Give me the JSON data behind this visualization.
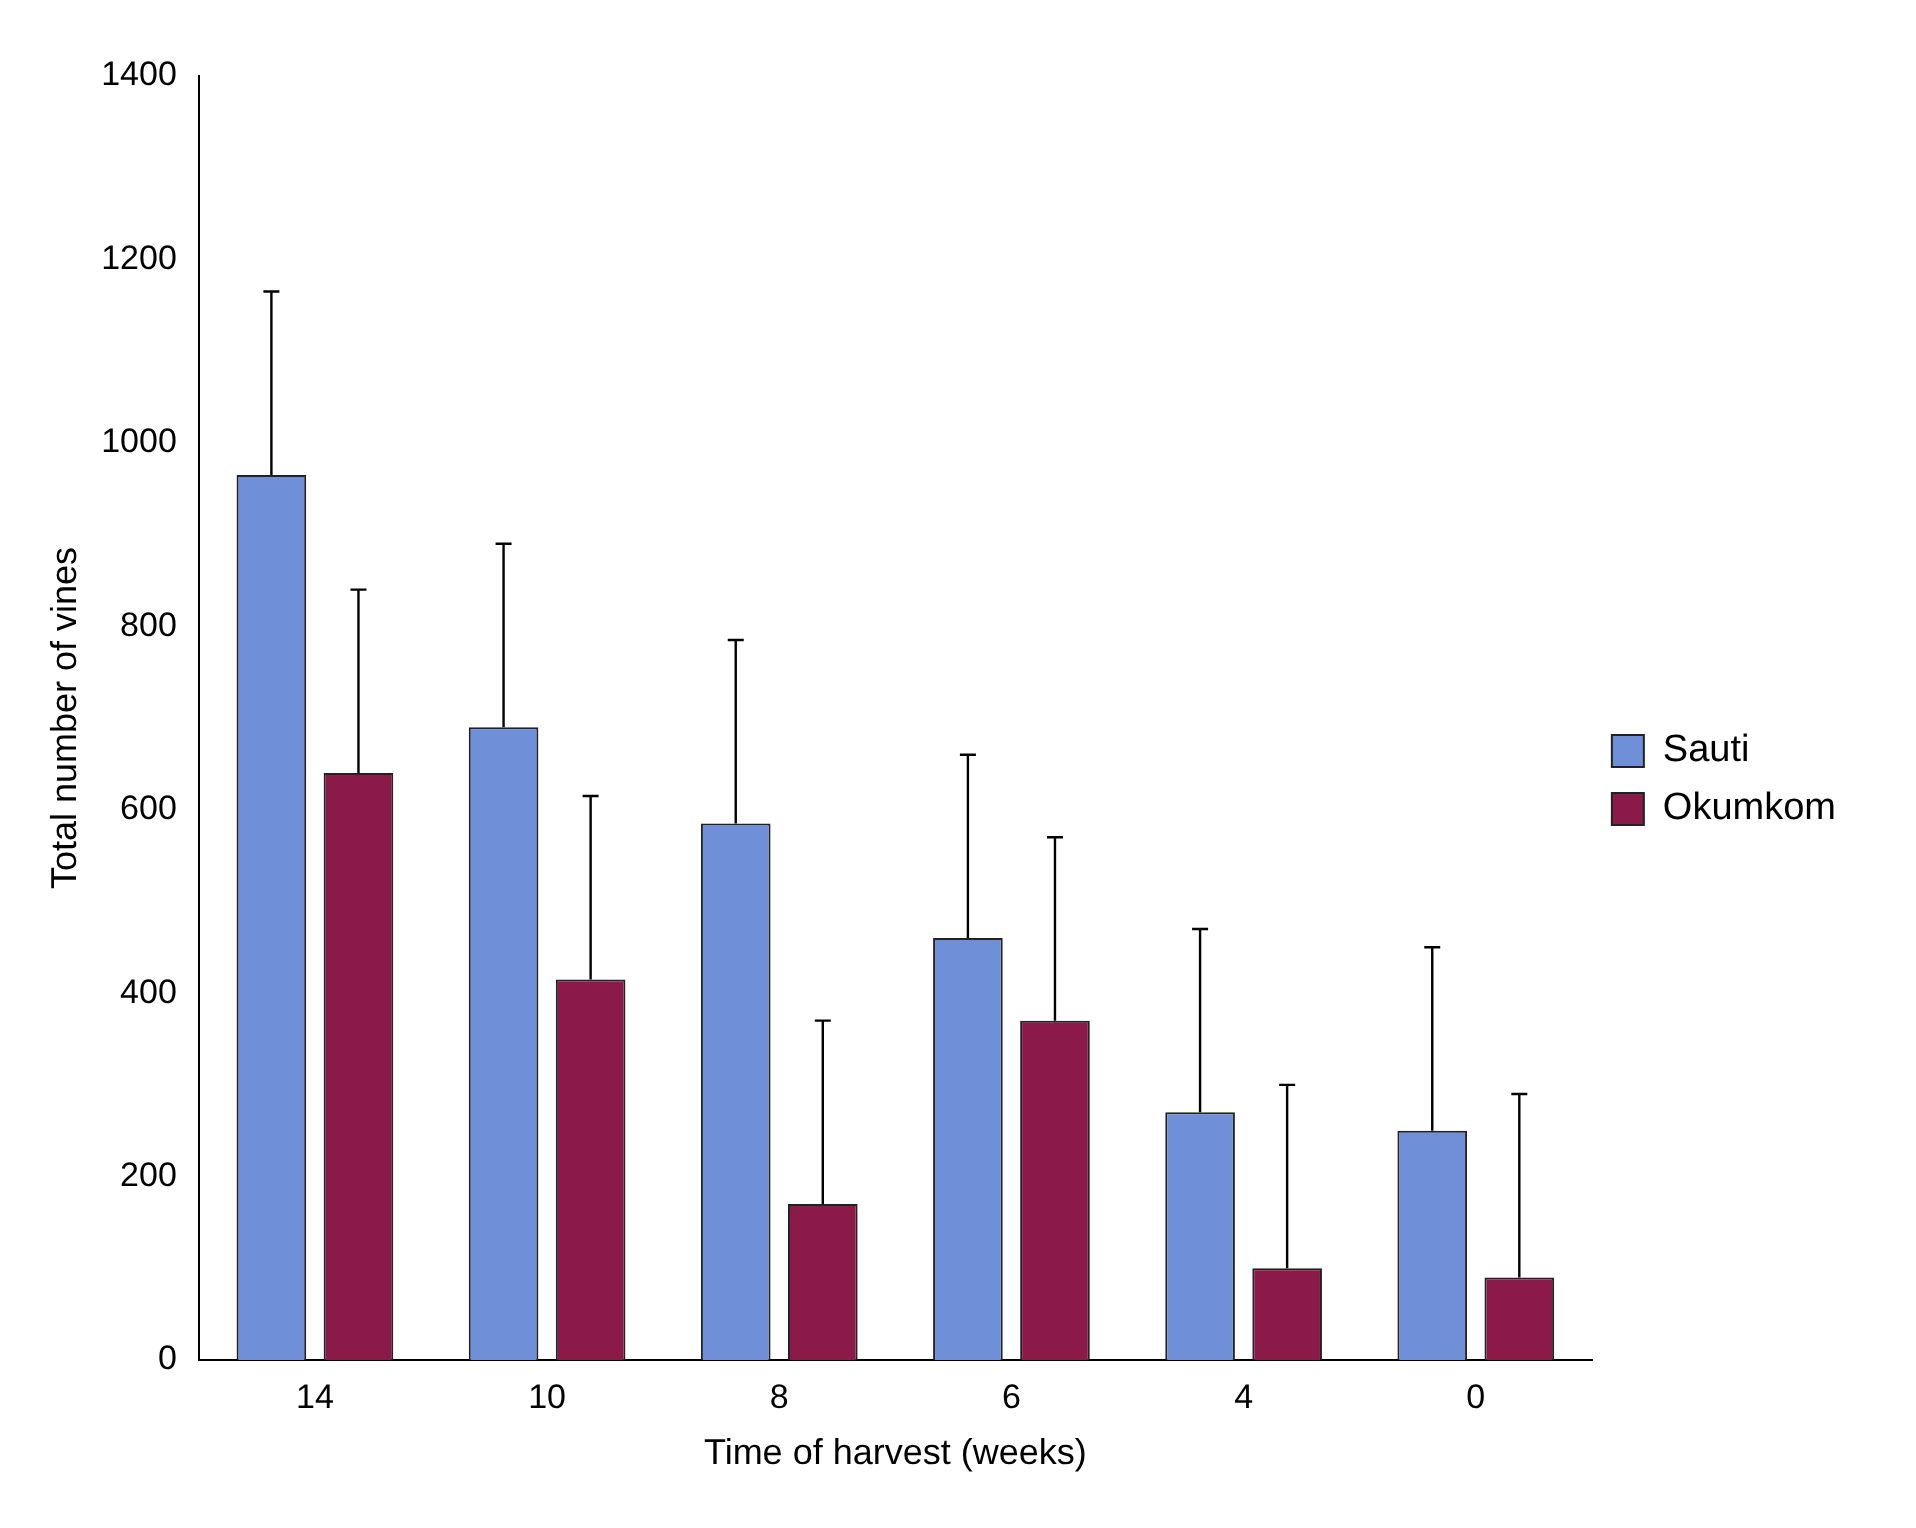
{
  "chart_data": {
    "type": "bar",
    "xlabel": "Time of harvest (weeks)",
    "ylabel": "Total number of vines",
    "categories": [
      "14",
      "10",
      "8",
      "6",
      "4",
      "0"
    ],
    "series": [
      {
        "name": "Sauti",
        "color": "#6f8fd8",
        "values": [
          965,
          690,
          585,
          460,
          270,
          250
        ],
        "errors": [
          [
            965,
            1165
          ],
          [
            690,
            890
          ],
          [
            585,
            785
          ],
          [
            460,
            660
          ],
          [
            270,
            470
          ],
          [
            250,
            450
          ]
        ]
      },
      {
        "name": "Okumkom",
        "color": "#8c1a48",
        "values": [
          640,
          415,
          170,
          370,
          100,
          90
        ],
        "errors": [
          [
            640,
            840
          ],
          [
            415,
            615
          ],
          [
            170,
            370
          ],
          [
            370,
            570
          ],
          [
            100,
            300
          ],
          [
            90,
            290
          ]
        ]
      }
    ],
    "ylim": [
      0,
      1400
    ],
    "yticks": [
      0,
      200,
      400,
      600,
      800,
      1000,
      1200,
      1400
    ],
    "grid": false,
    "legend": "right"
  }
}
